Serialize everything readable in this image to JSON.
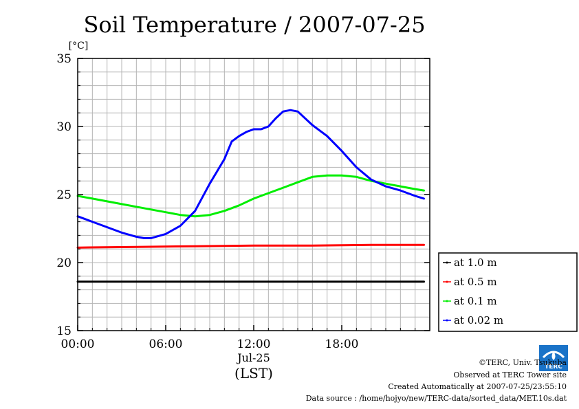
{
  "chart_data": {
    "type": "line",
    "title": "Soil Temperature / 2007-07-25",
    "ylabel": "[°C]",
    "ylim": [
      15,
      35
    ],
    "yticks": [
      "35",
      "30",
      "25",
      "20",
      "15"
    ],
    "xlim": [
      0,
      24
    ],
    "xticks": [
      {
        "x": 0,
        "label": "00:00"
      },
      {
        "x": 6,
        "label": "06:00"
      },
      {
        "x": 12,
        "label": "12:00"
      },
      {
        "x": 18,
        "label": "18:00"
      }
    ],
    "date_label": "Jul-25",
    "xlabel": "(LST)",
    "grid": true,
    "legend_placement": "right",
    "series": [
      {
        "name": "at 1.0 m",
        "color": "#000000",
        "x": [
          0,
          4,
          8,
          12,
          16,
          20,
          23.6
        ],
        "values": [
          18.6,
          18.6,
          18.6,
          18.6,
          18.6,
          18.6,
          18.6
        ]
      },
      {
        "name": "at 0.5 m",
        "color": "#ff0000",
        "x": [
          0,
          4,
          8,
          12,
          16,
          20,
          23.6
        ],
        "values": [
          21.1,
          21.15,
          21.2,
          21.25,
          21.25,
          21.3,
          21.3
        ]
      },
      {
        "name": "at 0.1 m",
        "color": "#00ee00",
        "x": [
          0,
          1,
          2,
          3,
          4,
          5,
          6,
          7,
          8,
          9,
          10,
          11,
          12,
          13,
          14,
          15,
          16,
          17,
          18,
          19,
          20,
          21,
          22,
          23,
          23.6
        ],
        "values": [
          24.9,
          24.7,
          24.5,
          24.3,
          24.1,
          23.9,
          23.7,
          23.5,
          23.4,
          23.5,
          23.8,
          24.2,
          24.7,
          25.1,
          25.5,
          25.9,
          26.3,
          26.4,
          26.4,
          26.3,
          26.0,
          25.8,
          25.6,
          25.4,
          25.3
        ]
      },
      {
        "name": "at 0.02 m",
        "color": "#0000ff",
        "x": [
          0,
          1,
          2,
          3,
          4,
          4.5,
          5,
          6,
          7,
          8,
          9,
          10,
          10.5,
          11,
          11.5,
          12,
          12.5,
          13,
          13.5,
          14,
          14.5,
          15,
          16,
          17,
          18,
          19,
          20,
          21,
          22,
          23,
          23.6
        ],
        "values": [
          23.4,
          23.0,
          22.6,
          22.2,
          21.9,
          21.8,
          21.8,
          22.1,
          22.7,
          23.8,
          25.8,
          27.6,
          28.9,
          29.3,
          29.6,
          29.8,
          29.8,
          30.0,
          30.6,
          31.1,
          31.2,
          31.1,
          30.1,
          29.3,
          28.2,
          27.0,
          26.1,
          25.6,
          25.3,
          24.9,
          24.7
        ]
      }
    ]
  },
  "credits": {
    "copyright": "©TERC, Univ. Tsukuba",
    "site": "Observed at TERC Tower site",
    "created": "Created Automatically at 2007-07-25/23:55:10",
    "source": "Data source : /home/hojyo/new/TERC-data/sorted_data/MET.10s.dat"
  },
  "logo": {
    "text": "TERC",
    "color": "#1a73c8"
  }
}
